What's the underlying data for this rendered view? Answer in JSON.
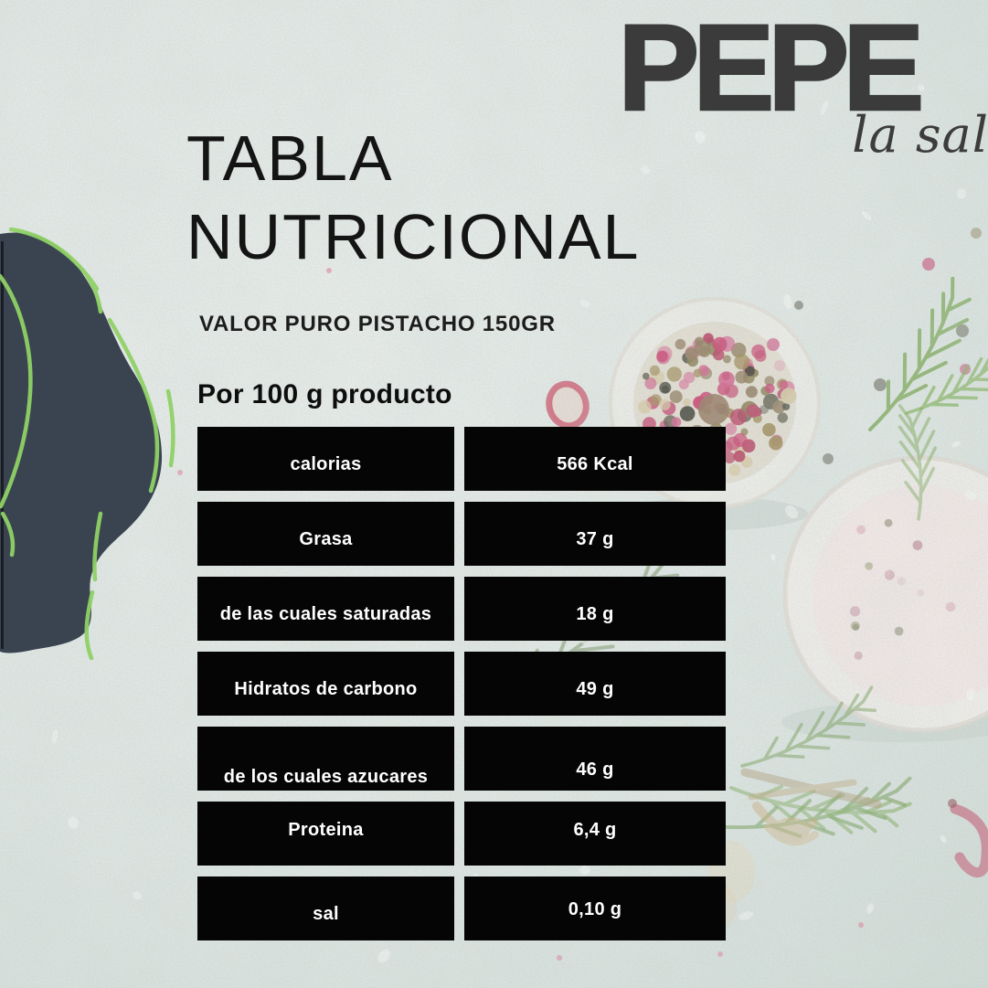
{
  "brand": {
    "name": "PEPE",
    "tagline": "la sal"
  },
  "heading": {
    "line1": "TABLA",
    "line2": "NUTRICIONAL"
  },
  "subtitle": "VALOR PURO PISTACHO 150GR",
  "serving_note": "Por 100 g producto",
  "nutrition": {
    "rows": [
      {
        "label": "calorias",
        "value": "566 Kcal"
      },
      {
        "label": "Grasa",
        "value": "37 g"
      },
      {
        "label": "de las cuales saturadas",
        "value": "18 g"
      },
      {
        "label": "Hidratos de carbono",
        "value": "49 g"
      },
      {
        "label": "de los cuales azucares",
        "value": "46 g"
      },
      {
        "label": "Proteina",
        "value": "6,4 g"
      },
      {
        "label": "sal",
        "value": "0,10 g"
      }
    ]
  },
  "colors": {
    "row_background": "#050505",
    "row_text": "#ffffff",
    "accent_green": "#8fd166",
    "blob_dark": "#3a4450",
    "logo_gray": "#3b3b3b",
    "background": "#e4e9e6"
  }
}
